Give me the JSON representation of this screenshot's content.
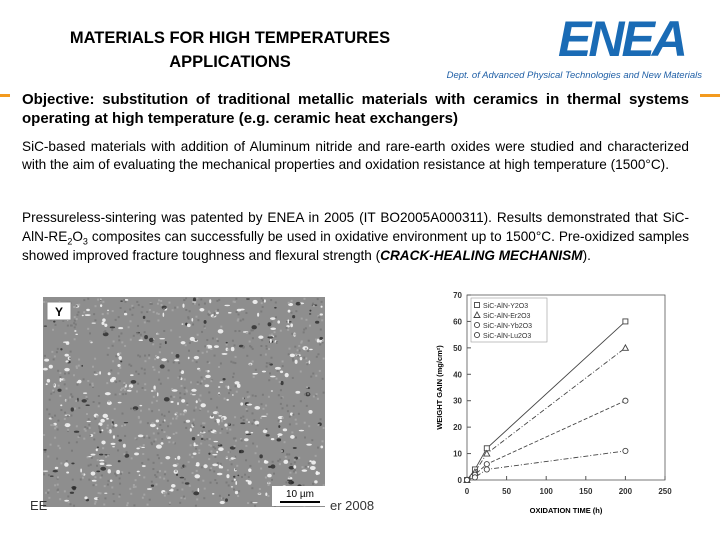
{
  "header": {
    "title": "MATERIALS FOR HIGH TEMPERATURES APPLICATIONS",
    "logo": "ENEA",
    "department": "Dept. of Advanced Physical Technologies and New Materials"
  },
  "paragraphs": [
    "Objective: substitution of traditional metallic materials with ceramics in thermal systems operating at high temperature (e.g. ceramic heat exchangers)",
    "SiC-based materials with addition of Aluminum nitride and rare-earth oxides were studied and characterized with the aim of evaluating the mechanical properties and oxidation resistance at high temperature (1500°C).",
    [
      "Pressureless-sintering was patented by ENEA in 2005 (IT BO2005A000311). Results demonstrated that SiC-AlN-RE",
      "2",
      "O",
      "3",
      " composites can successfully be used in oxidative environment up to 1500°C. Pre-oxidized samples showed improved fracture toughness and flexural strength (",
      "CRACK-HEALING MECHANISM",
      ")."
    ]
  ],
  "micrograph": {
    "label": "Y",
    "scale": "10 µm"
  },
  "footer": {
    "left": "EE",
    "right": "er 2008"
  },
  "chart_data": {
    "type": "line",
    "xlabel": "OXIDATION TIME (h)",
    "ylabel": "WEIGHT GAIN (mg/cm²)",
    "x": [
      0,
      10,
      25,
      200
    ],
    "series": [
      {
        "name": "SiC-AlN-Y2O3",
        "color": "#444444",
        "marker": "square",
        "dash": "solid",
        "values": [
          0,
          4,
          12,
          60
        ]
      },
      {
        "name": "SiC-AlN-Er2O3",
        "color": "#444444",
        "marker": "triangle",
        "dash": "dashdot",
        "values": [
          0,
          3,
          10,
          50
        ]
      },
      {
        "name": "SiC-AlN-Yb2O3",
        "color": "#444444",
        "marker": "circle",
        "dash": "dashed",
        "values": [
          0,
          2,
          6,
          30
        ]
      },
      {
        "name": "SiC-AlN-Lu2O3",
        "color": "#444444",
        "marker": "circle",
        "dash": "dashdot",
        "values": [
          0,
          1,
          4,
          11
        ]
      }
    ],
    "xlim": [
      0,
      250
    ],
    "xticks": [
      0,
      50,
      100,
      150,
      200,
      250
    ],
    "ylim": [
      0,
      70
    ],
    "yticks": [
      0,
      10,
      20,
      30,
      40,
      50,
      60,
      70
    ],
    "legend": "upper left"
  }
}
